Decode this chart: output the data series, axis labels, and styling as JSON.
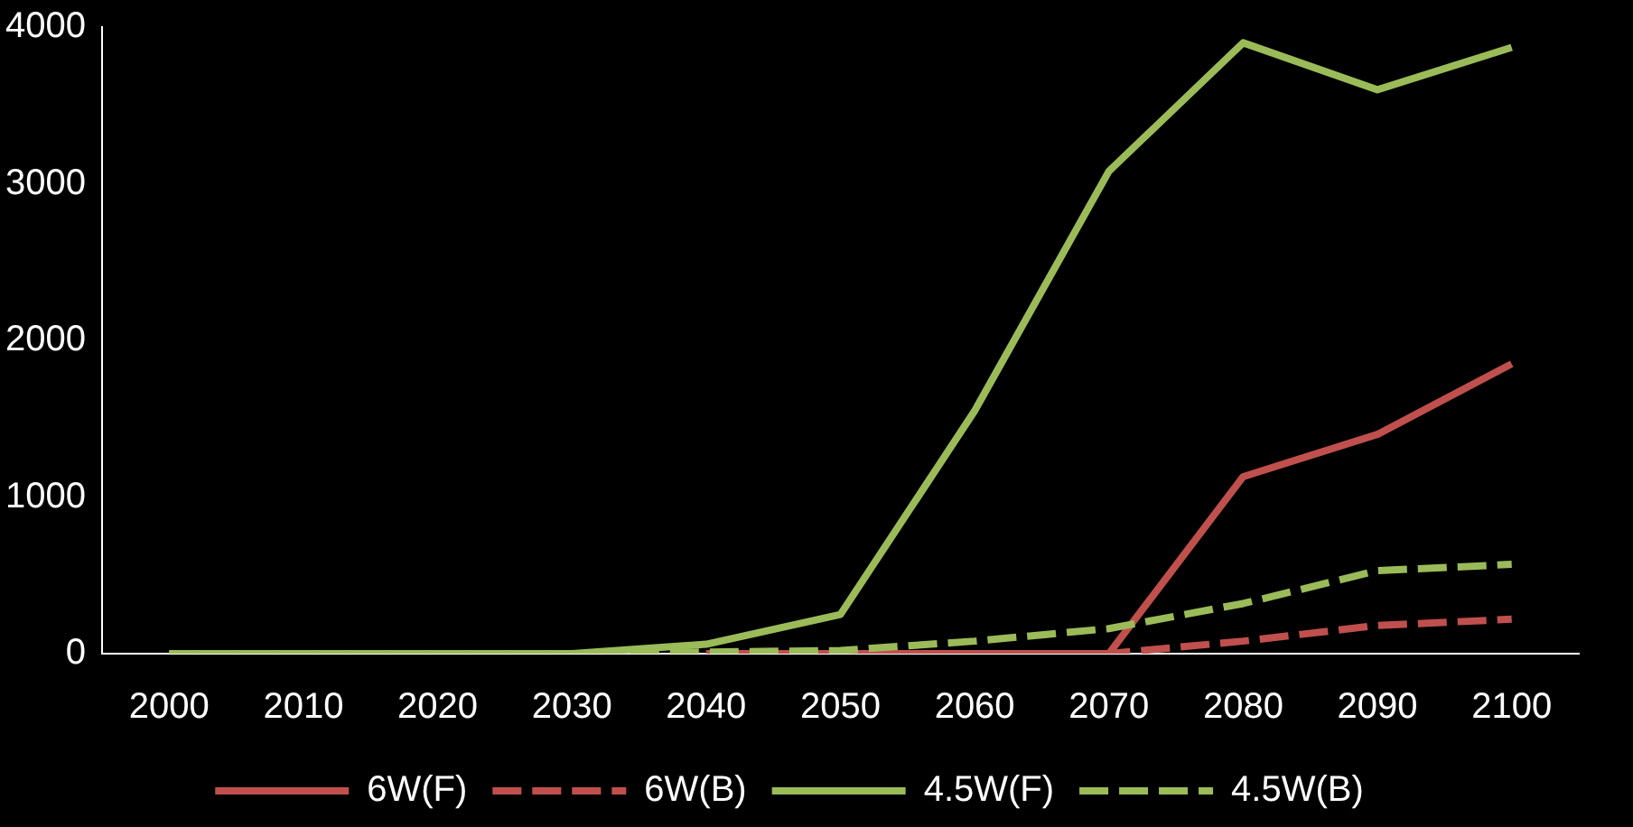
{
  "chart_data": {
    "type": "line",
    "categories": [
      "2000",
      "2010",
      "2020",
      "2030",
      "2040",
      "2050",
      "2060",
      "2070",
      "2080",
      "2090",
      "2100"
    ],
    "series": [
      {
        "name": "6W(F)",
        "color": "#c0504d",
        "line_style": "solid",
        "values": [
          null,
          null,
          null,
          null,
          0,
          0,
          0,
          0,
          1130,
          1400,
          1850
        ]
      },
      {
        "name": "6W(B)",
        "color": "#c0504d",
        "line_style": "dashed",
        "values": [
          null,
          null,
          null,
          null,
          0,
          0,
          0,
          0,
          80,
          180,
          220
        ]
      },
      {
        "name": "4.5W(F)",
        "color": "#9bbb59",
        "line_style": "solid",
        "values": [
          0,
          0,
          0,
          0,
          60,
          250,
          1550,
          3080,
          3900,
          3600,
          3870
        ]
      },
      {
        "name": "4.5W(B)",
        "color": "#9bbb59",
        "line_style": "dashed",
        "values": [
          0,
          0,
          0,
          0,
          10,
          20,
          80,
          160,
          320,
          530,
          570
        ]
      }
    ],
    "ylim": [
      0,
      4000
    ],
    "yticks": [
      0,
      1000,
      2000,
      3000,
      4000
    ],
    "grid": false,
    "legend": "bottom",
    "marker": "none"
  }
}
